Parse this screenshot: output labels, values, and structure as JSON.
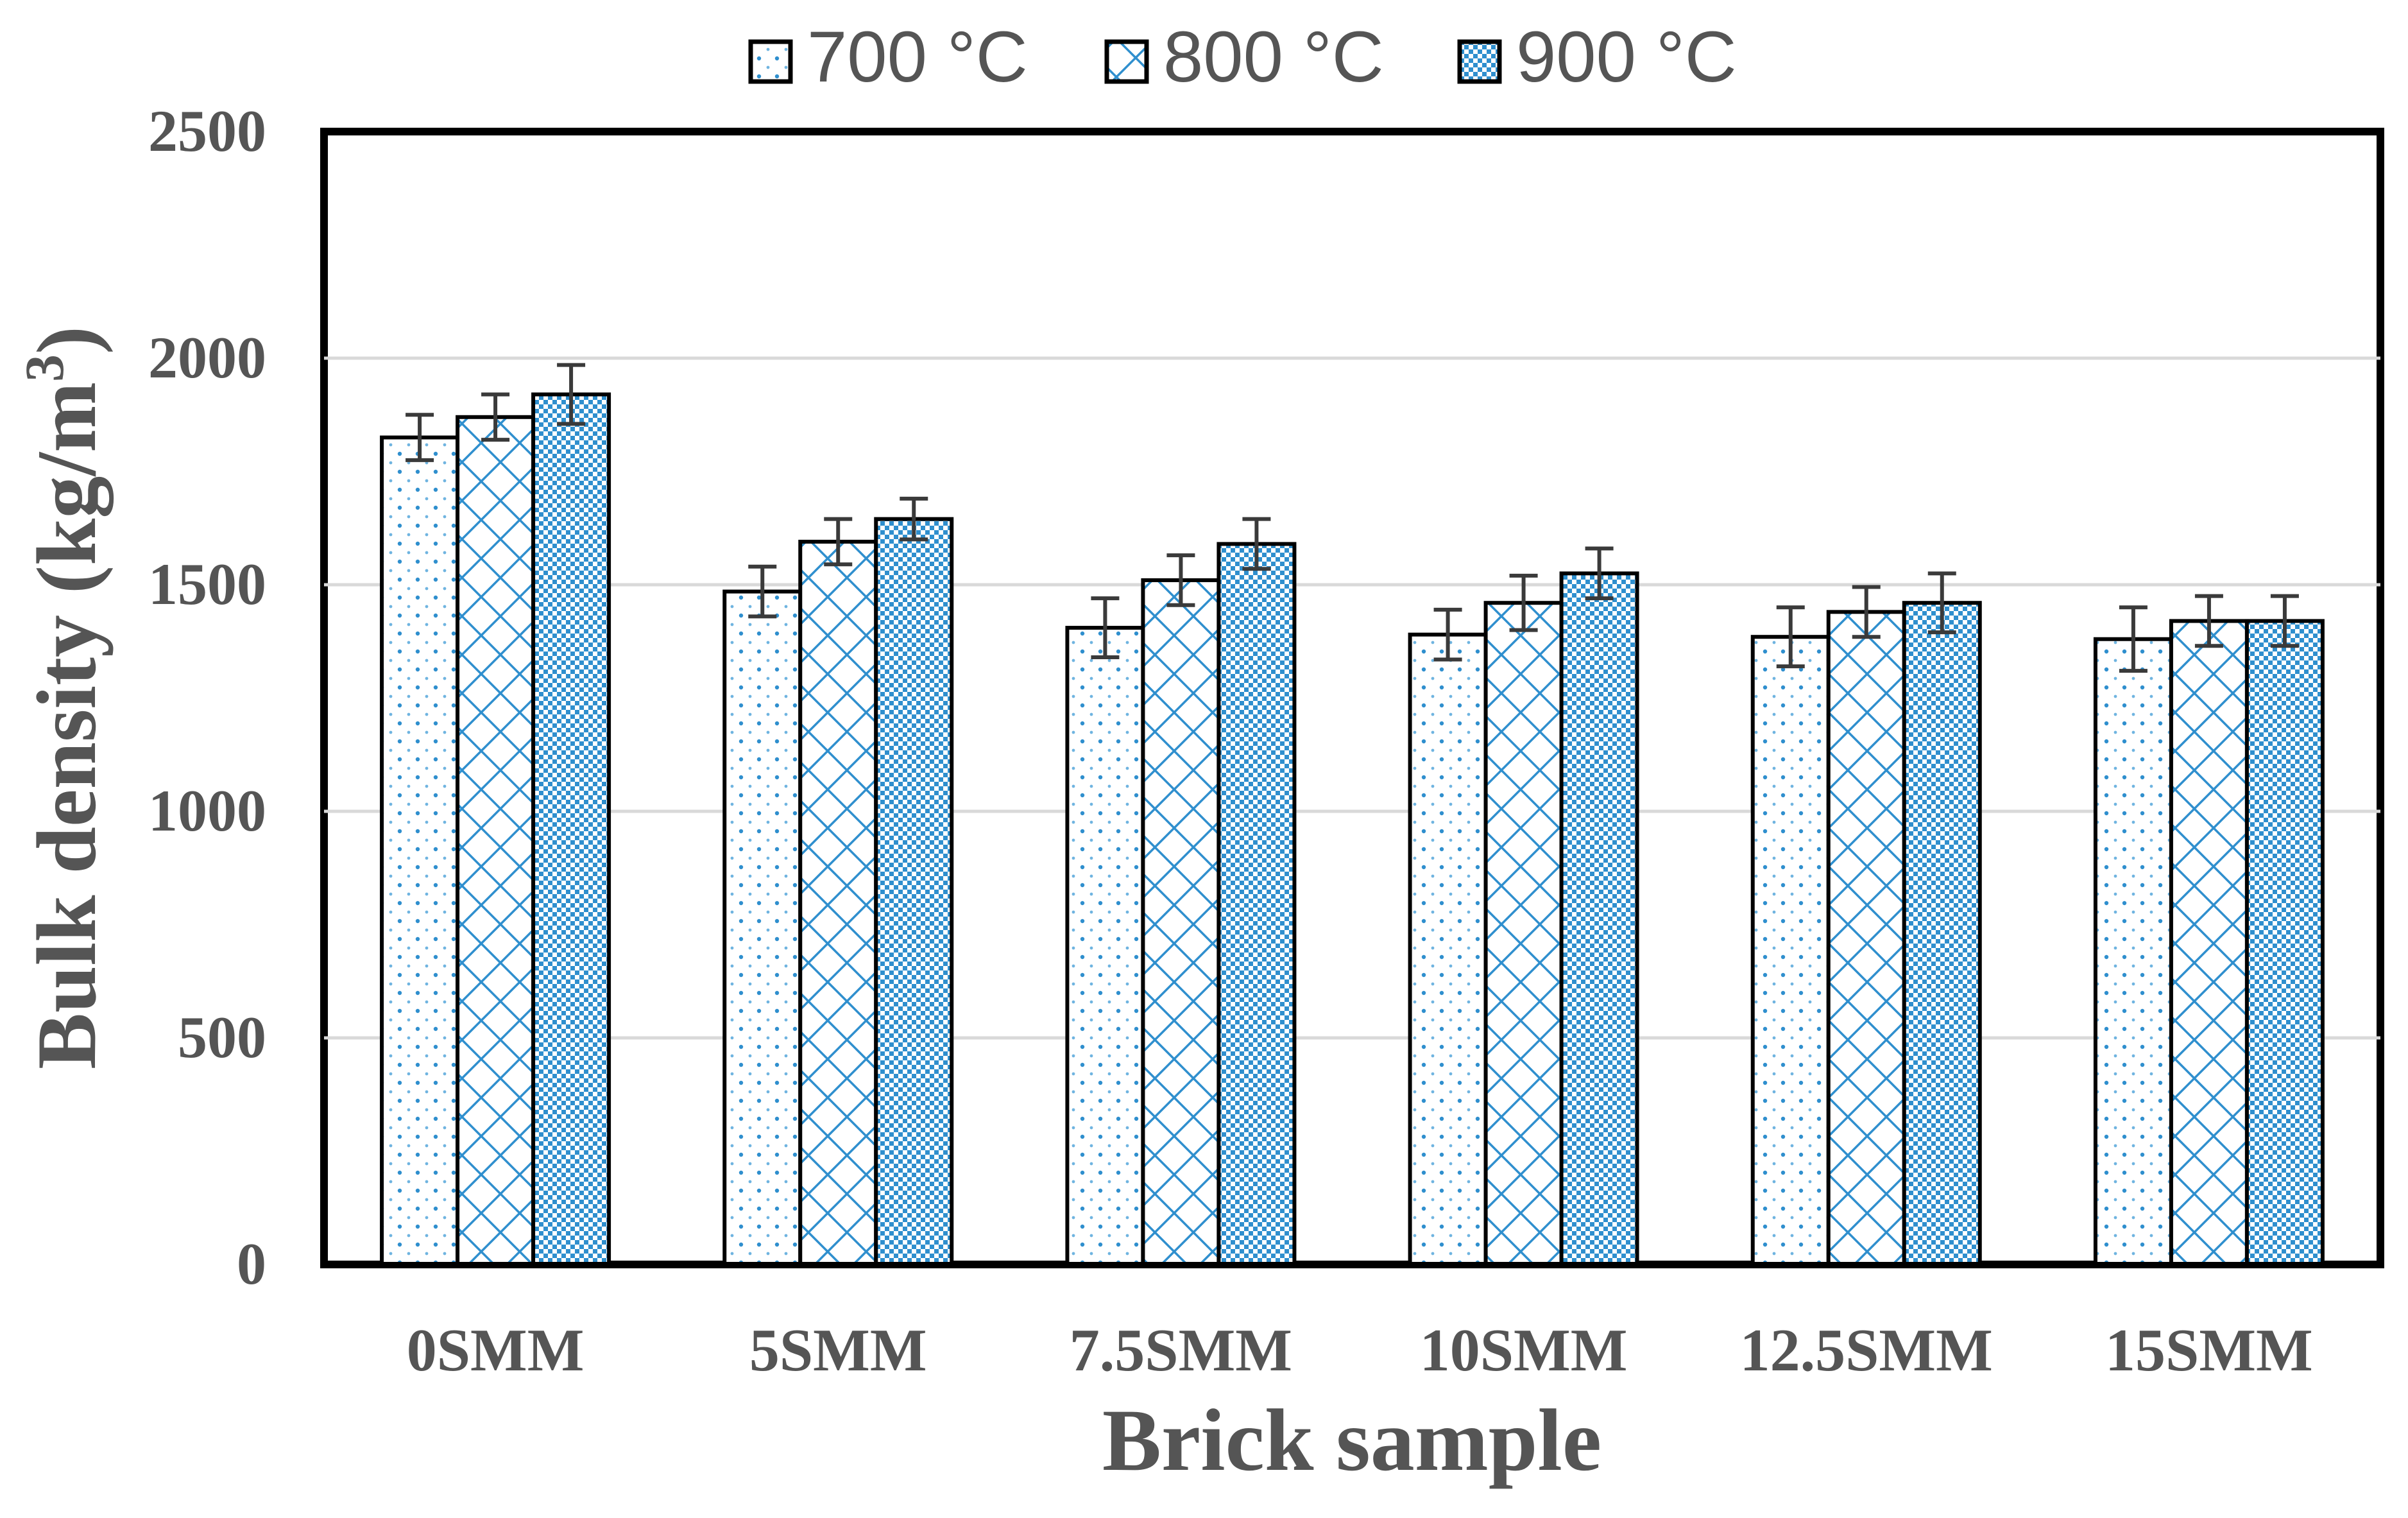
{
  "chart_data": {
    "type": "bar",
    "title": "",
    "xlabel": "Brick sample",
    "ylabel": "Bulk density (kg/m",
    "ylabel_superscript": "3",
    "ylabel_close": ")",
    "categories": [
      "0SMM",
      "5SMM",
      "7.5SMM",
      "10SMM",
      "12.5SMM",
      "15SMM"
    ],
    "series": [
      {
        "name": "700 °C",
        "pattern": "dots",
        "values": [
          1825,
          1485,
          1405,
          1390,
          1385,
          1380
        ],
        "errors": [
          50,
          55,
          65,
          55,
          65,
          70
        ]
      },
      {
        "name": "800 °C",
        "pattern": "diamonds",
        "values": [
          1870,
          1595,
          1510,
          1460,
          1440,
          1420
        ],
        "errors": [
          50,
          50,
          55,
          60,
          55,
          55
        ]
      },
      {
        "name": "900 °C",
        "pattern": "checker",
        "values": [
          1920,
          1645,
          1590,
          1525,
          1460,
          1420
        ],
        "errors": [
          65,
          45,
          55,
          55,
          65,
          55
        ]
      }
    ],
    "ylim": [
      0,
      2500
    ],
    "yticks": [
      0,
      500,
      1000,
      1500,
      2000,
      2500
    ],
    "grid": true,
    "legend": "top-center",
    "colors": {
      "pattern": "#2f8fce",
      "bar_outline": "#000000",
      "error_bar": "#3a3a3a",
      "text": "#555555",
      "grid": "#d9d9d9",
      "frame": "#000000"
    }
  }
}
